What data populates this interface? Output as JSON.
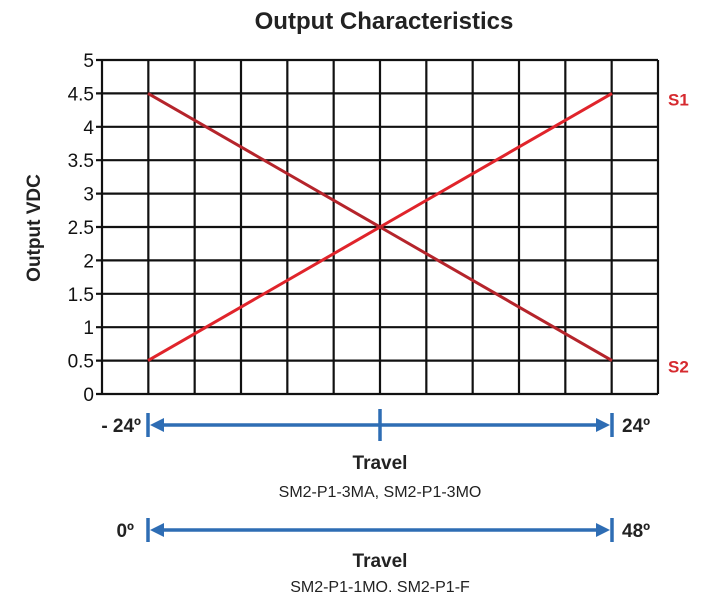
{
  "chart_data": {
    "type": "line",
    "title": "Output Characteristics",
    "ylabel": "Output VDC",
    "ylim": [
      0,
      5
    ],
    "yticks": [
      "0",
      "0.5",
      "1",
      "1.5",
      "2",
      "2.5",
      "3",
      "3.5",
      "4",
      "4.5",
      "5"
    ],
    "x_range": [
      -24,
      24
    ],
    "grid": true,
    "series": [
      {
        "name": "S1",
        "color": "#e0242b",
        "x": [
          -24,
          24
        ],
        "values": [
          0.5,
          4.5
        ]
      },
      {
        "name": "S2",
        "color": "#b5242b",
        "x": [
          -24,
          24
        ],
        "values": [
          4.5,
          0.5
        ]
      }
    ]
  },
  "travel_scales": [
    {
      "left_label": "- 24º",
      "right_label": "24º",
      "title": "Travel",
      "models": "SM2-P1-3MA, SM2-P1-3MO",
      "center_tick": true,
      "color": "#2e6db4"
    },
    {
      "left_label": "0º",
      "right_label": "48º",
      "title": "Travel",
      "models": "SM2-P1-1MO. SM2-P1-F",
      "center_tick": false,
      "color": "#2e6db4"
    }
  ]
}
